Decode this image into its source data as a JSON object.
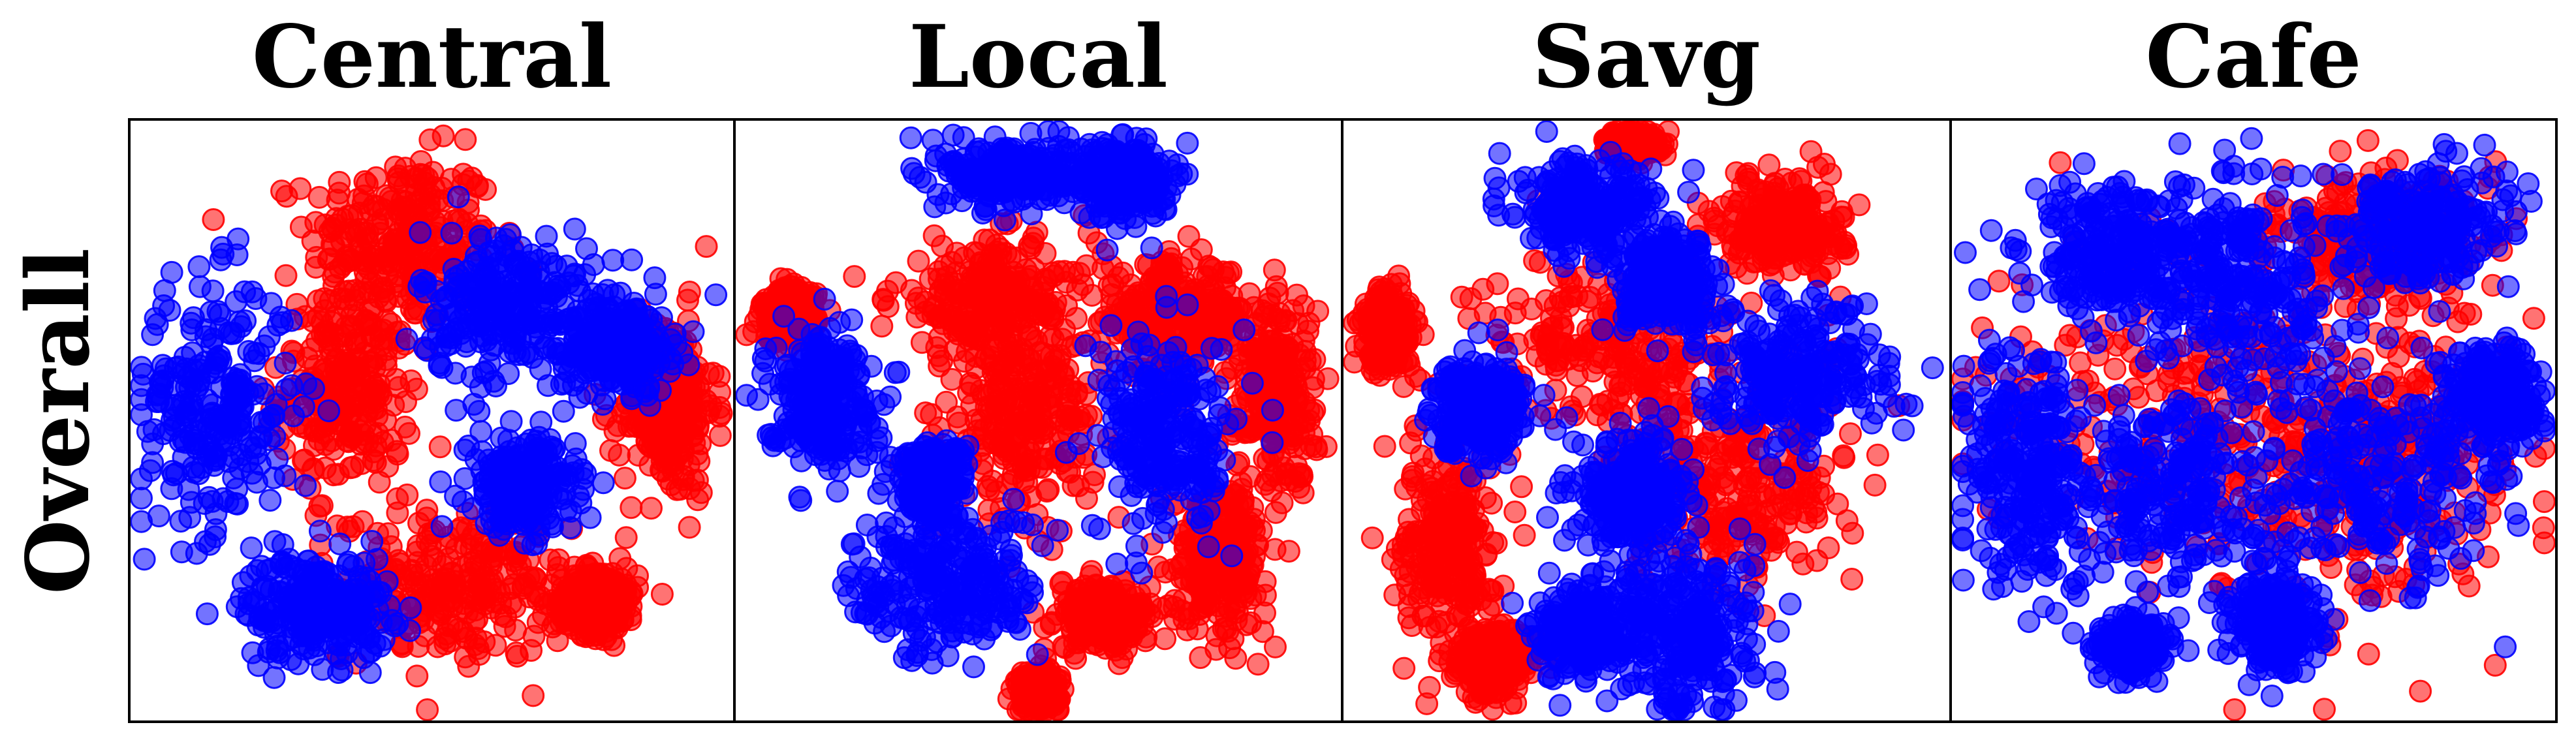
{
  "row_label": "Overall",
  "colors": {
    "class_a": "#ff0000",
    "class_b": "#0000ff"
  },
  "chart_data": [
    {
      "type": "scatter",
      "title": "Central",
      "grid": false,
      "xlim": [
        -100,
        100
      ],
      "ylim": [
        -100,
        100
      ],
      "clusters": [
        {
          "class": "class_a",
          "center": [
            -10,
            60
          ],
          "spread": [
            28,
            26
          ]
        },
        {
          "class": "class_a",
          "center": [
            -28,
            10
          ],
          "spread": [
            20,
            30
          ]
        },
        {
          "class": "class_a",
          "center": [
            8,
            -55
          ],
          "spread": [
            34,
            22
          ]
        },
        {
          "class": "class_a",
          "center": [
            78,
            5
          ],
          "spread": [
            14,
            28
          ]
        },
        {
          "class": "class_a",
          "center": [
            55,
            -60
          ],
          "spread": [
            12,
            10
          ]
        },
        {
          "class": "class_b",
          "center": [
            -72,
            5
          ],
          "spread": [
            24,
            38
          ]
        },
        {
          "class": "class_b",
          "center": [
            -38,
            -62
          ],
          "spread": [
            22,
            16
          ]
        },
        {
          "class": "class_b",
          "center": [
            25,
            38
          ],
          "spread": [
            26,
            24
          ]
        },
        {
          "class": "class_b",
          "center": [
            62,
            25
          ],
          "spread": [
            16,
            14
          ]
        },
        {
          "class": "class_b",
          "center": [
            30,
            -22
          ],
          "spread": [
            16,
            14
          ]
        }
      ]
    },
    {
      "type": "scatter",
      "title": "Local",
      "grid": false,
      "xlim": [
        -100,
        100
      ],
      "ylim": [
        -100,
        100
      ],
      "clusters": [
        {
          "class": "class_b",
          "center": [
            -10,
            82
          ],
          "spread": [
            18,
            10
          ]
        },
        {
          "class": "class_b",
          "center": [
            28,
            80
          ],
          "spread": [
            14,
            12
          ]
        },
        {
          "class": "class_b",
          "center": [
            -72,
            8
          ],
          "spread": [
            16,
            20
          ]
        },
        {
          "class": "class_b",
          "center": [
            -35,
            -20
          ],
          "spread": [
            10,
            12
          ]
        },
        {
          "class": "class_b",
          "center": [
            -30,
            -55
          ],
          "spread": [
            28,
            22
          ]
        },
        {
          "class": "class_b",
          "center": [
            42,
            -5
          ],
          "spread": [
            20,
            30
          ]
        },
        {
          "class": "class_a",
          "center": [
            -15,
            40
          ],
          "spread": [
            30,
            18
          ]
        },
        {
          "class": "class_a",
          "center": [
            45,
            35
          ],
          "spread": [
            22,
            16
          ]
        },
        {
          "class": "class_a",
          "center": [
            -5,
            0
          ],
          "spread": [
            22,
            28
          ]
        },
        {
          "class": "class_a",
          "center": [
            78,
            10
          ],
          "spread": [
            12,
            30
          ]
        },
        {
          "class": "class_a",
          "center": [
            -82,
            35
          ],
          "spread": [
            8,
            8
          ]
        },
        {
          "class": "class_a",
          "center": [
            22,
            -65
          ],
          "spread": [
            14,
            10
          ]
        },
        {
          "class": "class_a",
          "center": [
            60,
            -45
          ],
          "spread": [
            14,
            22
          ]
        },
        {
          "class": "class_a",
          "center": [
            0,
            -90
          ],
          "spread": [
            6,
            6
          ]
        }
      ]
    },
    {
      "type": "scatter",
      "title": "Savg",
      "grid": false,
      "xlim": [
        -100,
        100
      ],
      "ylim": [
        -100,
        100
      ],
      "clusters": [
        {
          "class": "class_b",
          "center": [
            -20,
            70
          ],
          "spread": [
            20,
            14
          ]
        },
        {
          "class": "class_b",
          "center": [
            8,
            45
          ],
          "spread": [
            14,
            14
          ]
        },
        {
          "class": "class_b",
          "center": [
            -55,
            5
          ],
          "spread": [
            14,
            14
          ]
        },
        {
          "class": "class_b",
          "center": [
            50,
            15
          ],
          "spread": [
            28,
            22
          ]
        },
        {
          "class": "class_b",
          "center": [
            -5,
            -25
          ],
          "spread": [
            16,
            20
          ]
        },
        {
          "class": "class_b",
          "center": [
            15,
            -70
          ],
          "spread": [
            20,
            24
          ]
        },
        {
          "class": "class_b",
          "center": [
            -20,
            -70
          ],
          "spread": [
            14,
            12
          ]
        },
        {
          "class": "class_a",
          "center": [
            -10,
            25
          ],
          "spread": [
            40,
            26
          ]
        },
        {
          "class": "class_a",
          "center": [
            30,
            -25
          ],
          "spread": [
            34,
            28
          ]
        },
        {
          "class": "class_a",
          "center": [
            -65,
            -40
          ],
          "spread": [
            14,
            30
          ]
        },
        {
          "class": "class_a",
          "center": [
            45,
            65
          ],
          "spread": [
            18,
            14
          ]
        },
        {
          "class": "class_a",
          "center": [
            -85,
            30
          ],
          "spread": [
            8,
            12
          ]
        },
        {
          "class": "class_a",
          "center": [
            -50,
            -80
          ],
          "spread": [
            12,
            10
          ]
        },
        {
          "class": "class_a",
          "center": [
            -5,
            92
          ],
          "spread": [
            8,
            4
          ]
        }
      ]
    },
    {
      "type": "scatter",
      "title": "Cafe",
      "grid": false,
      "xlim": [
        -100,
        100
      ],
      "ylim": [
        -100,
        100
      ],
      "clusters": [
        {
          "class": "class_a",
          "center": [
            -20,
            5
          ],
          "spread": [
            60,
            50
          ]
        },
        {
          "class": "class_a",
          "center": [
            45,
            -15
          ],
          "spread": [
            40,
            40
          ]
        },
        {
          "class": "class_a",
          "center": [
            40,
            60
          ],
          "spread": [
            30,
            20
          ]
        },
        {
          "class": "class_b",
          "center": [
            -45,
            55
          ],
          "spread": [
            26,
            20
          ]
        },
        {
          "class": "class_b",
          "center": [
            -5,
            45
          ],
          "spread": [
            28,
            32
          ]
        },
        {
          "class": "class_b",
          "center": [
            55,
            65
          ],
          "spread": [
            24,
            18
          ]
        },
        {
          "class": "class_b",
          "center": [
            -75,
            -15
          ],
          "spread": [
            18,
            36
          ]
        },
        {
          "class": "class_b",
          "center": [
            -25,
            -25
          ],
          "spread": [
            32,
            30
          ]
        },
        {
          "class": "class_b",
          "center": [
            40,
            -20
          ],
          "spread": [
            38,
            38
          ]
        },
        {
          "class": "class_b",
          "center": [
            80,
            8
          ],
          "spread": [
            14,
            14
          ]
        },
        {
          "class": "class_b",
          "center": [
            8,
            -68
          ],
          "spread": [
            12,
            14
          ]
        },
        {
          "class": "class_b",
          "center": [
            -40,
            -75
          ],
          "spread": [
            10,
            8
          ]
        }
      ]
    }
  ]
}
